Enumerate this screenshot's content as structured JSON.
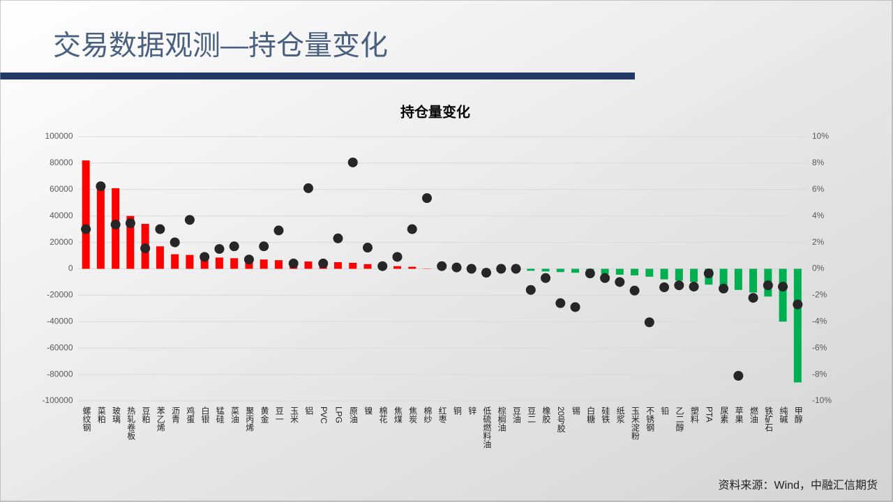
{
  "slide": {
    "title": "交易数据观测—持仓量变化",
    "source": "资料来源：Wind，中融汇信期货"
  },
  "chart_data": {
    "type": "combo",
    "title": "持仓量变化",
    "categories": [
      "螺纹钢",
      "菜粕",
      "玻璃",
      "热轧卷板",
      "豆粕",
      "苯乙烯",
      "沥青",
      "鸡蛋",
      "白银",
      "锰硅",
      "菜油",
      "聚丙烯",
      "黄金",
      "豆一",
      "玉米",
      "铝",
      "PVC",
      "LPG",
      "原油",
      "镍",
      "棉花",
      "焦煤",
      "焦炭",
      "棉纱",
      "红枣",
      "铜",
      "锌",
      "低硫燃料油",
      "棕榈油",
      "豆油",
      "豆二",
      "橡胶",
      "20号胶",
      "锡",
      "白糖",
      "硅铁",
      "纸浆",
      "玉米淀粉",
      "不锈钢",
      "铅",
      "乙二醇",
      "塑料",
      "PTA",
      "尿素",
      "苹果",
      "燃油",
      "铁矿石",
      "纯碱",
      "甲醇"
    ],
    "series": [
      {
        "type": "bar",
        "positive_color": "#ff0000",
        "negative_color": "#00b050",
        "values": [
          82000,
          62000,
          61000,
          40000,
          34000,
          17000,
          11000,
          10500,
          8500,
          8500,
          8000,
          7500,
          7000,
          6500,
          6000,
          5500,
          5000,
          5000,
          4500,
          3500,
          3000,
          2000,
          1500,
          200,
          100,
          0,
          -200,
          -300,
          -500,
          -1000,
          -1500,
          -2000,
          -2500,
          -3000,
          -3500,
          -4000,
          -4500,
          -5000,
          -6000,
          -8000,
          -9000,
          -10000,
          -12000,
          -14000,
          -16000,
          -18000,
          -21000,
          -40000,
          -86000
        ]
      },
      {
        "type": "scatter",
        "axis": "y2",
        "color": "#262626",
        "values": [
          3.0,
          6.25,
          3.35,
          3.45,
          1.55,
          3.0,
          2.0,
          3.7,
          0.9,
          1.5,
          1.7,
          0.7,
          1.7,
          2.9,
          0.4,
          6.1,
          0.4,
          2.3,
          8.05,
          1.6,
          0.2,
          0.9,
          3.0,
          5.35,
          0.2,
          0.1,
          0.0,
          -0.3,
          0.0,
          0.0,
          -1.6,
          -0.7,
          -2.6,
          -2.9,
          -0.35,
          -0.7,
          -1.0,
          -1.65,
          -4.05,
          -1.4,
          -1.25,
          -1.35,
          -0.35,
          -1.5,
          -8.1,
          -2.2,
          -1.25,
          -1.35,
          -2.7
        ]
      }
    ],
    "ylim": [
      -100000,
      100000
    ],
    "yticks": [
      -100000,
      -80000,
      -60000,
      -40000,
      -20000,
      0,
      20000,
      40000,
      60000,
      80000,
      100000
    ],
    "y2lim": [
      -10,
      10
    ],
    "y2ticks": [
      {
        "value": -10,
        "label": "-10%"
      },
      {
        "value": -8,
        "label": "-8%"
      },
      {
        "value": -6,
        "label": "-6%"
      },
      {
        "value": -4,
        "label": "-4%"
      },
      {
        "value": -2,
        "label": "-2%"
      },
      {
        "value": 0,
        "label": "0%"
      },
      {
        "value": 2,
        "label": "2%"
      },
      {
        "value": 4,
        "label": "4%"
      },
      {
        "value": 6,
        "label": "6%"
      },
      {
        "value": 8,
        "label": "8%"
      },
      {
        "value": 10,
        "label": "10%"
      }
    ],
    "grid": true
  }
}
